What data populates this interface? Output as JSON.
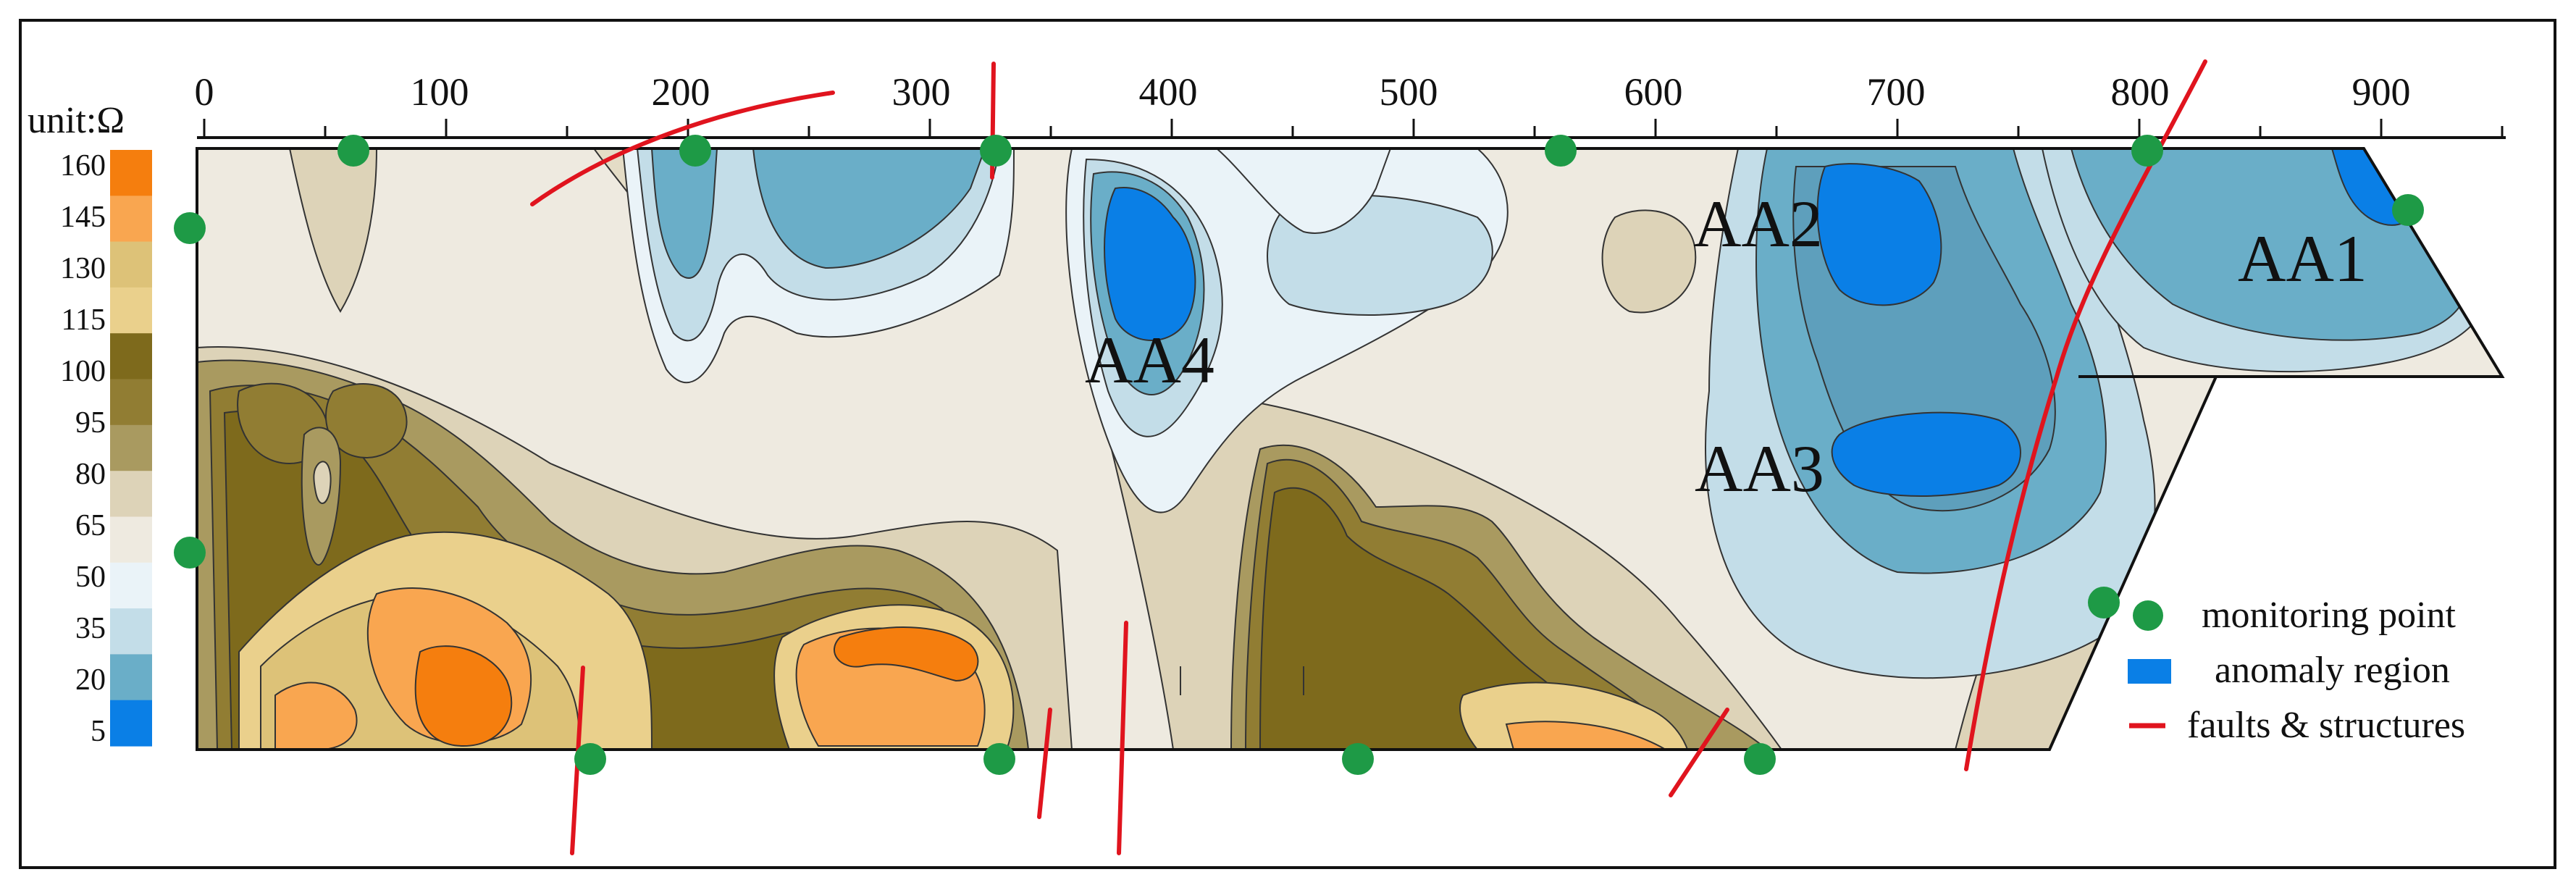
{
  "scale_bar": {
    "title": "unit:Ω",
    "labels": [
      "160",
      "145",
      "130",
      "115",
      "100",
      "95",
      "80",
      "65",
      "50",
      "35",
      "20",
      "5"
    ],
    "colors": [
      "#F57E0E",
      "#F9A650",
      "#DDC278",
      "#EAD08C",
      "#7E6A1C",
      "#917D33",
      "#A99A60",
      "#DDD3B8",
      "#EEEAE0",
      "#EAF3F8",
      "#C3DDE8",
      "#6AAEC8",
      "#0A7FE6"
    ]
  },
  "x_axis": {
    "tick_labels": [
      "0",
      "100",
      "200",
      "300",
      "400",
      "500",
      "600",
      "700",
      "800",
      "900"
    ]
  },
  "anomalies": [
    {
      "label": "AA1"
    },
    {
      "label": "AA2"
    },
    {
      "label": "AA3"
    },
    {
      "label": "AA4"
    }
  ],
  "legend": {
    "items": [
      {
        "label": "monitoring point",
        "color": "#1E9A46",
        "icon": "green-circle-icon"
      },
      {
        "label": "anomaly region",
        "color": "#0A7FE6",
        "icon": "blue-rectangle-icon"
      },
      {
        "label": "faults & structures",
        "color": "#E0141E",
        "icon": "red-line-icon"
      }
    ]
  },
  "colors": {
    "frame": "#111111",
    "fault": "#E0141E",
    "monitoring_point": "#1E9A46",
    "anomaly": "#0A7FE6"
  }
}
